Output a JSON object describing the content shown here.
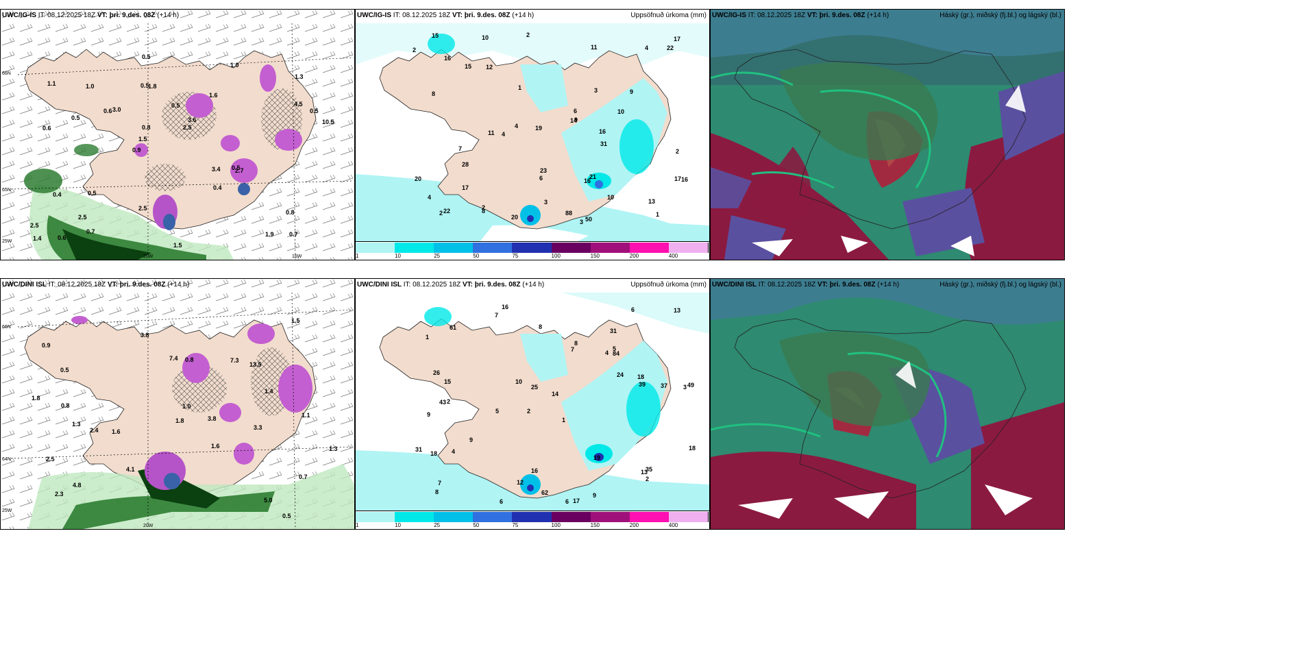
{
  "panels": {
    "p1": {
      "model": "UWC/IG-IS",
      "it": "IT: 08.12.2025 18Z",
      "vt_label": "VT:",
      "vt": "þri. 9.des. 08Z",
      "lead": "(+14 h)"
    },
    "p2": {
      "model": "UWC/IG-IS",
      "it": "IT: 08.12.2025 18Z",
      "vt_label": "VT:",
      "vt": "þri. 9.des. 08Z",
      "lead": "(+14 h)",
      "right": "Uppsöfnuð úrkoma (mm)"
    },
    "p3": {
      "model": "UWC/IG-IS",
      "it": "IT: 08.12.2025 18Z",
      "vt_label": "VT:",
      "vt": "þri. 9.des. 08Z",
      "lead": "(+14 h)",
      "right": "Háský (gr.), miðský (fj.bl.) og lágský (bl.)"
    },
    "p4": {
      "model": "UWC/DINI ISL",
      "it": "IT: 08.12.2025 18Z",
      "vt_label": "VT:",
      "vt": "þri. 9.des. 08Z",
      "lead": "(+14 h)"
    },
    "p5": {
      "model": "UWC/DINI ISL",
      "it": "IT: 08.12.2025 18Z",
      "vt_label": "VT:",
      "vt": "þri. 9.des. 08Z",
      "lead": "(+14 h)",
      "right": "Uppsöfnuð úrkoma (mm)"
    },
    "p6": {
      "model": "UWC/DINI ISL",
      "it": "IT: 08.12.2025 18Z",
      "vt_label": "VT:",
      "vt": "þri. 9.des. 08Z",
      "lead": "(+14 h)",
      "right": "Háský (gr.), miðský (fj.bl.) og lágský (bl.)"
    }
  },
  "colorbar": {
    "labels": [
      "1",
      "10",
      "25",
      "50",
      "75",
      "100",
      "150",
      "200",
      "400"
    ],
    "colors": [
      "#b0f4f4",
      "#00e8e8",
      "#00c0e8",
      "#3070e0",
      "#2030b0",
      "#6a0060",
      "#a0107a",
      "#ff10b0",
      "#f0b0f0"
    ]
  },
  "axis_labels": {
    "lat66": "66N",
    "lat65": "65N",
    "lat64": "64N",
    "lon25": "25W",
    "lon20": "20W",
    "lon15": "15W"
  },
  "p1_values": [
    "0.7",
    "0.6",
    "1.3",
    "0.9",
    "1.6",
    "0.6",
    "0.5",
    "0.5",
    "0.4",
    "3.0",
    "2.5",
    "2.5",
    "1.8",
    "3.6",
    "2.7",
    "1.1",
    "0.5",
    "10.5",
    "3.4",
    "4.5",
    "1.5",
    "2.5",
    "0.8",
    "1.0",
    "1.0",
    "0.5",
    "1.9",
    "0.8",
    "0.5",
    "1.5",
    "0.6",
    "0.5",
    "0.4",
    "0.7",
    "0.5",
    "2.5",
    "1.4"
  ],
  "p2_values": [
    "20",
    "3",
    "2",
    "10",
    "10",
    "16",
    "11",
    "1",
    "2",
    "1",
    "4",
    "3",
    "4",
    "6",
    "11",
    "14",
    "8",
    "8",
    "4",
    "2",
    "16",
    "17",
    "6",
    "2",
    "9",
    "7",
    "20",
    "28",
    "15",
    "31",
    "19",
    "50",
    "23",
    "22",
    "17",
    "16",
    "17",
    "4",
    "3",
    "13",
    "9",
    "10",
    "16",
    "22",
    "12",
    "21",
    "2",
    "88",
    "15"
  ],
  "p4_values": [
    "0.5",
    "1.3",
    "1.6",
    "0.9",
    "0.7",
    "0.5",
    "4.8",
    "1.6",
    "13.5",
    "7.4",
    "7.3",
    "5.0",
    "4.1",
    "3.8",
    "3.8",
    "2.5",
    "3.3",
    "1.0",
    "1.8",
    "2.3",
    "1.5",
    "0.8",
    "1.4",
    "1.3",
    "1.1",
    "0.8",
    "2.4",
    "1.8"
  ],
  "p5_values": [
    "16",
    "31",
    "3",
    "2",
    "1",
    "2",
    "1",
    "4",
    "9",
    "7",
    "14",
    "8",
    "7",
    "5",
    "6",
    "17",
    "16",
    "6",
    "24",
    "9",
    "15",
    "43",
    "49",
    "37",
    "31",
    "26",
    "25",
    "39",
    "35",
    "18",
    "13",
    "8",
    "4",
    "10",
    "19",
    "18",
    "18",
    "12",
    "13",
    "8",
    "7",
    "6",
    "9",
    "61",
    "62",
    "84",
    "2",
    "5"
  ]
}
